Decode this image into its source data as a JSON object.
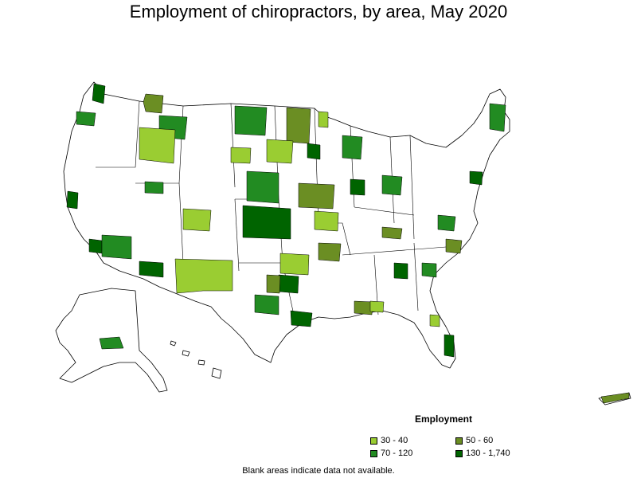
{
  "title": "Employment of chiropractors, by area, May 2020",
  "legend": {
    "title": "Employment",
    "items": [
      {
        "label": "30 - 40",
        "color": "#9acd32"
      },
      {
        "label": "50 - 60",
        "color": "#6b8e23"
      },
      {
        "label": "70 - 120",
        "color": "#228b22"
      },
      {
        "label": "130 - 1,740",
        "color": "#006400"
      }
    ]
  },
  "footnote": "Blank areas indicate data not available."
}
